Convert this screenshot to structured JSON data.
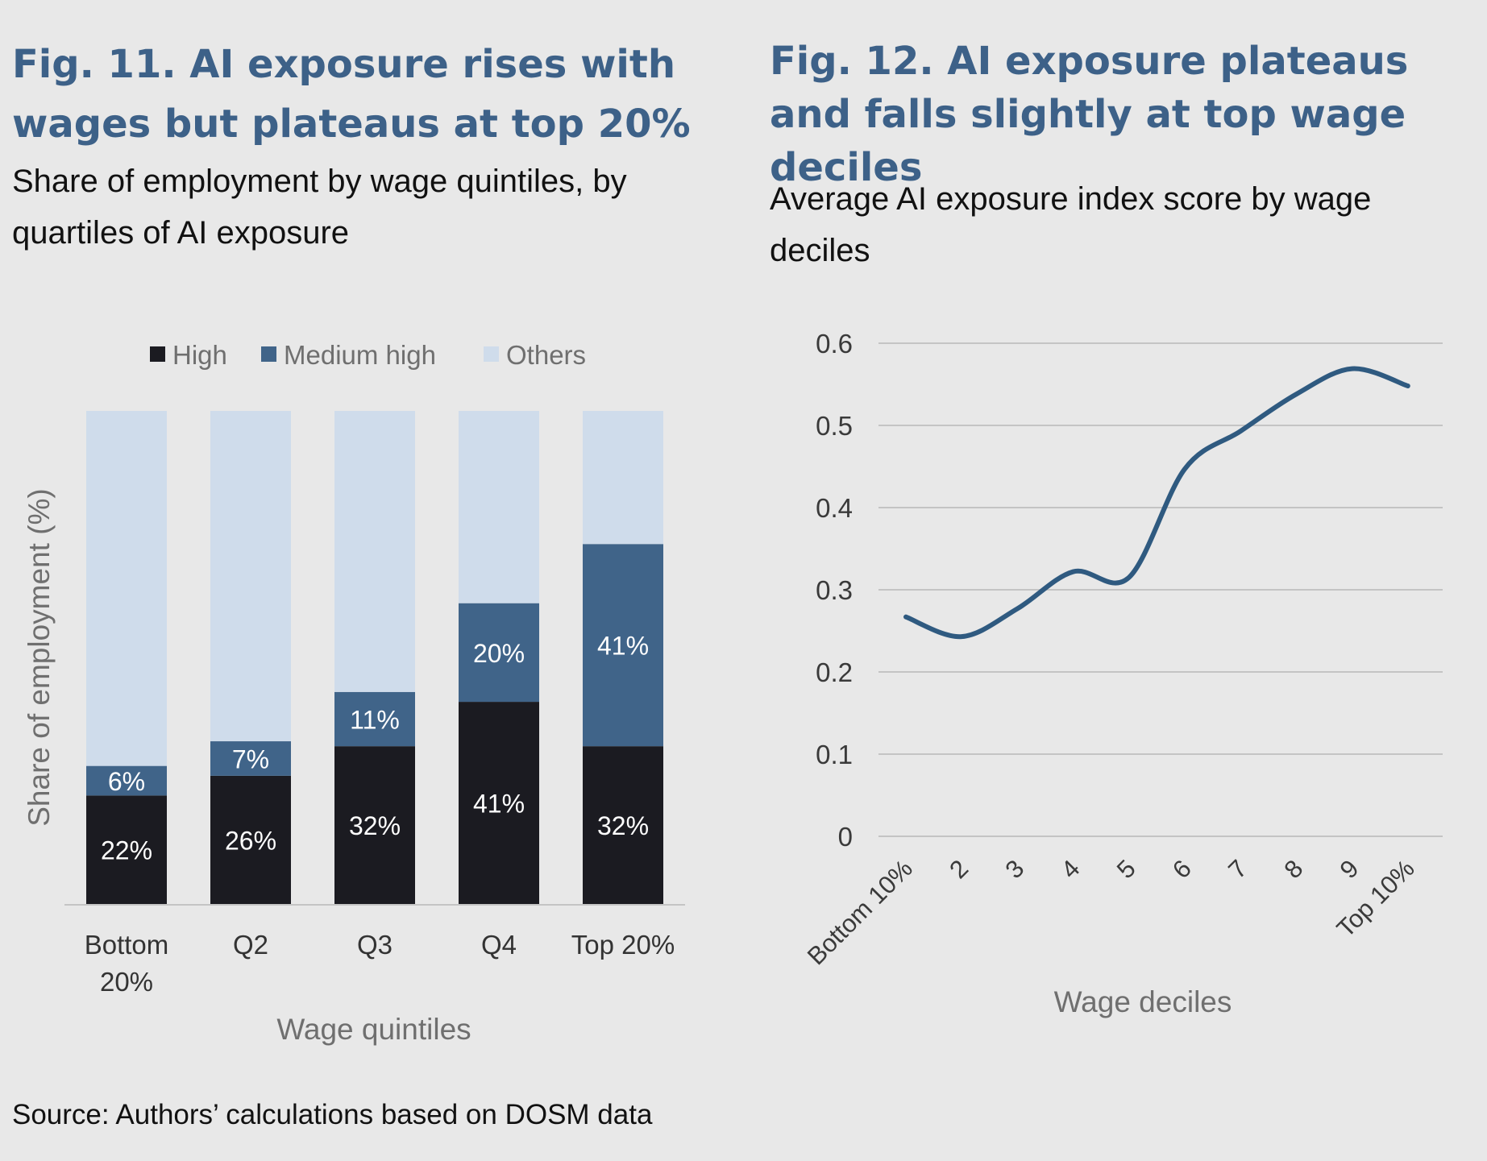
{
  "left_figure": {
    "title": "Fig. 11. AI exposure rises with wages but plateaus at top 20%",
    "subtitle": "Share of employment by wage quintiles, by quartiles of AI exposure"
  },
  "right_figure": {
    "title": "Fig. 12. AI exposure plateaus and falls slightly at top wage deciles",
    "subtitle": "Average AI exposure index score by wage deciles"
  },
  "source": "Source: Authors’ calculations based on DOSM data",
  "colors": {
    "high": "#1b1b21",
    "medium_high": "#406489",
    "others": "#cfdceb",
    "line": "#2f5a80",
    "grid": "#c4c4c4",
    "axis_text": "#6f6f6f"
  },
  "chart_data": [
    {
      "type": "bar",
      "stacked": true,
      "categories": [
        "Bottom 20%",
        "Q2",
        "Q3",
        "Q4",
        "Top 20%"
      ],
      "series": [
        {
          "name": "High",
          "values": [
            22,
            26,
            32,
            41,
            32
          ],
          "labels": [
            "22%",
            "26%",
            "32%",
            "41%",
            "32%"
          ]
        },
        {
          "name": "Medium high",
          "values": [
            6,
            7,
            11,
            20,
            41
          ],
          "labels": [
            "6%",
            "7%",
            "11%",
            "20%",
            "41%"
          ]
        },
        {
          "name": "Others",
          "values": [
            72,
            67,
            57,
            39,
            27
          ]
        }
      ],
      "xlabel": "Wage quintiles",
      "ylabel": "Share of employment (%)",
      "ylim": [
        0,
        100
      ],
      "legend_position": "top"
    },
    {
      "type": "line",
      "categories": [
        "Bottom 10%",
        "2",
        "3",
        "4",
        "5",
        "6",
        "7",
        "8",
        "9",
        "Top 10%"
      ],
      "series": [
        {
          "values": [
            0.267,
            0.243,
            0.277,
            0.322,
            0.315,
            0.447,
            0.493,
            0.538,
            0.569,
            0.548
          ]
        }
      ],
      "yticks": [
        "0",
        "0.1",
        "0.2",
        "0.3",
        "0.4",
        "0.5",
        "0.6"
      ],
      "ylim": [
        0,
        0.6
      ],
      "xlabel": "Wage deciles",
      "ylabel": "",
      "grid": true
    }
  ]
}
